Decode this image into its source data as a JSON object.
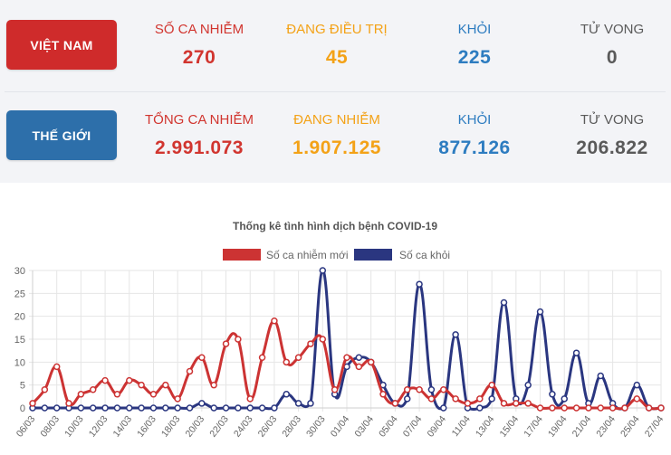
{
  "vietnam": {
    "button_label": "VIỆT NAM",
    "stats": [
      {
        "label": "SỐ CA NHIỄM",
        "value": "270"
      },
      {
        "label": "ĐANG ĐIỀU TRỊ",
        "value": "45"
      },
      {
        "label": "KHỎI",
        "value": "225"
      },
      {
        "label": "TỬ VONG",
        "value": "0"
      }
    ]
  },
  "world": {
    "button_label": "THẾ GIỚI",
    "stats": [
      {
        "label": "TỔNG CA NHIỄM",
        "value": "2.991.073"
      },
      {
        "label": "ĐANG NHIỄM",
        "value": "1.907.125"
      },
      {
        "label": "KHỎI",
        "value": "877.126"
      },
      {
        "label": "TỬ VONG",
        "value": "206.822"
      }
    ]
  },
  "colors": {
    "red": "#d1352f",
    "orange": "#f3a217",
    "blue": "#2d7cc0",
    "gray": "#5a5a5a",
    "vn_button": "#cf2b2b",
    "world_button": "#2d6faa"
  },
  "chart_data": {
    "type": "line",
    "title": "Thống kê tình hình dịch bệnh COVID-19",
    "xlabel": "",
    "ylabel": "",
    "ylim": [
      0,
      30
    ],
    "yticks": [
      0,
      5,
      10,
      15,
      20,
      25,
      30
    ],
    "grid": true,
    "legend_position": "top-center",
    "x": [
      "06/03",
      "07/03",
      "08/03",
      "09/03",
      "10/03",
      "11/03",
      "12/03",
      "13/03",
      "14/03",
      "15/03",
      "16/03",
      "17/03",
      "18/03",
      "19/03",
      "20/03",
      "21/03",
      "22/03",
      "23/03",
      "24/03",
      "25/03",
      "26/03",
      "27/03",
      "28/03",
      "29/03",
      "30/03",
      "31/03",
      "01/04",
      "02/04",
      "03/04",
      "04/04",
      "05/04",
      "06/04",
      "07/04",
      "08/04",
      "09/04",
      "10/04",
      "11/04",
      "12/04",
      "13/04",
      "14/04",
      "15/04",
      "16/04",
      "17/04",
      "18/04",
      "19/04",
      "20/04",
      "21/04",
      "22/04",
      "23/04",
      "24/04",
      "25/04",
      "26/04",
      "27/04"
    ],
    "x_tick_labels": [
      "06/03",
      "08/03",
      "10/03",
      "12/03",
      "14/03",
      "16/03",
      "18/03",
      "20/03",
      "22/03",
      "24/03",
      "26/03",
      "28/03",
      "30/03",
      "01/04",
      "03/04",
      "05/04",
      "07/04",
      "09/04",
      "11/04",
      "13/04",
      "15/04",
      "17/04",
      "19/04",
      "21/04",
      "23/04",
      "25/04",
      "27/04"
    ],
    "series": [
      {
        "name": "Số ca nhiễm mới",
        "color": "#cc3333",
        "values": [
          1,
          4,
          9,
          1,
          3,
          4,
          6,
          3,
          6,
          5,
          3,
          5,
          2,
          8,
          11,
          5,
          14,
          15,
          2,
          11,
          19,
          10,
          11,
          14,
          15,
          4,
          11,
          9,
          10,
          3,
          1,
          4,
          4,
          2,
          4,
          2,
          1,
          2,
          5,
          1,
          1,
          1,
          0,
          0,
          0,
          0,
          0,
          0,
          0,
          0,
          2,
          0,
          0
        ]
      },
      {
        "name": "Số ca khỏi",
        "color": "#2a3680",
        "values": [
          0,
          0,
          0,
          0,
          0,
          0,
          0,
          0,
          0,
          0,
          0,
          0,
          0,
          0,
          1,
          0,
          0,
          0,
          0,
          0,
          0,
          3,
          1,
          1,
          30,
          3,
          9,
          11,
          10,
          5,
          1,
          2,
          27,
          4,
          0,
          16,
          0,
          0,
          2,
          23,
          2,
          5,
          21,
          3,
          2,
          12,
          1,
          7,
          1,
          0,
          5,
          0,
          0
        ]
      }
    ]
  }
}
